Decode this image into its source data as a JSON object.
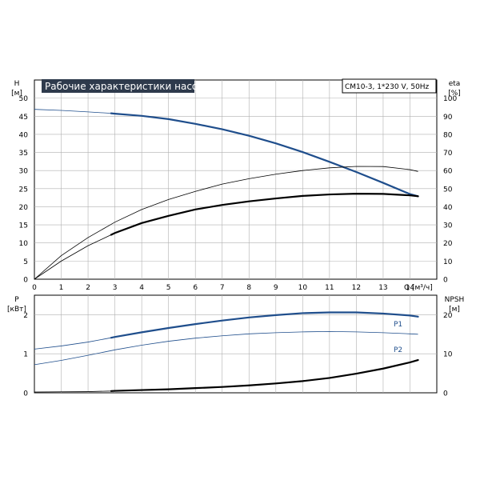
{
  "colors": {
    "blue": "#1f4e8c",
    "black": "#000000",
    "grid": "#b0b0b0",
    "title_bg": "#2e3a4c"
  },
  "chart_data": [
    {
      "id": "head",
      "type": "line",
      "title": "Рабочие характеристики насоса",
      "info": "CM10-3, 1*230 V, 50Hz",
      "xlabel": "Q [м³/ч]",
      "ylabel_left": [
        "H",
        "[м]"
      ],
      "ylabel_right": [
        "eta",
        "[%]"
      ],
      "xlim": [
        0,
        15
      ],
      "ylim": [
        0,
        55
      ],
      "y2lim": [
        0,
        110
      ],
      "x_ticks": [
        "0",
        "1",
        "2",
        "3",
        "4",
        "5",
        "6",
        "7",
        "8",
        "9",
        "10",
        "11",
        "12",
        "13",
        "14"
      ],
      "y_ticks": [
        "0",
        "5",
        "10",
        "15",
        "20",
        "25",
        "30",
        "35",
        "40",
        "45",
        "50"
      ],
      "y2_ticks": [
        "0",
        "10",
        "20",
        "30",
        "40",
        "50",
        "60",
        "70",
        "80",
        "90",
        "100"
      ],
      "grid": true,
      "series": [
        {
          "role": "H",
          "axis": "left",
          "color": "#1f4e8c",
          "x": [
            0,
            1,
            2,
            2.86,
            3,
            4,
            5,
            6,
            7,
            8,
            9,
            10,
            11,
            12,
            13,
            14,
            14.3
          ],
          "y": [
            46.9,
            46.6,
            46.2,
            45.8,
            45.7,
            45.1,
            44.2,
            42.9,
            41.4,
            39.6,
            37.5,
            35.1,
            32.4,
            29.6,
            26.6,
            23.5,
            22.9
          ],
          "thick_from": 2.86
        },
        {
          "role": "eta",
          "axis": "right",
          "color": "#000000",
          "x": [
            0,
            1,
            2,
            2.86,
            3,
            4,
            5,
            6,
            7,
            8,
            9,
            10,
            11,
            12,
            13,
            14,
            14.3
          ],
          "y": [
            0,
            13,
            23,
            30.3,
            31.5,
            38.5,
            44,
            48.5,
            52.5,
            55.5,
            58,
            60,
            61.5,
            62.3,
            62.2,
            60.5,
            59.5
          ],
          "thick_from": 99
        },
        {
          "role": "eta2",
          "axis": "right",
          "color": "#000000",
          "x": [
            0,
            1,
            2,
            2.86,
            3,
            4,
            5,
            6,
            7,
            8,
            9,
            10,
            11,
            12,
            13,
            14,
            14.3
          ],
          "y": [
            0,
            10,
            18.5,
            24.5,
            25.5,
            31,
            35,
            38.5,
            41,
            43,
            44.6,
            46,
            46.8,
            47.2,
            47.1,
            46.3,
            45.8
          ],
          "thick_from": 2.86
        }
      ]
    },
    {
      "id": "power",
      "type": "line",
      "xlim": [
        0,
        15
      ],
      "ylim": [
        0,
        2.5
      ],
      "y2lim": [
        0,
        25
      ],
      "ylabel_left": [
        "P",
        "[кВт]"
      ],
      "ylabel_right": [
        "NPSH",
        "[м]"
      ],
      "y_ticks": [
        "0",
        "1",
        "2"
      ],
      "y2_ticks": [
        "0",
        "10",
        "20"
      ],
      "grid": true,
      "series": [
        {
          "name": "P1",
          "axis": "left",
          "color": "#1f4e8c",
          "x": [
            0,
            1,
            2,
            2.86,
            3,
            4,
            5,
            6,
            7,
            8,
            9,
            10,
            11,
            12,
            13,
            14,
            14.3
          ],
          "y": [
            1.12,
            1.2,
            1.3,
            1.41,
            1.43,
            1.55,
            1.66,
            1.76,
            1.85,
            1.93,
            1.99,
            2.04,
            2.06,
            2.06,
            2.03,
            1.98,
            1.95
          ],
          "thick_from": 2.86
        },
        {
          "name": "P2",
          "axis": "left",
          "color": "#1f4e8c",
          "x": [
            0,
            1,
            2,
            2.86,
            3,
            4,
            5,
            6,
            7,
            8,
            9,
            10,
            11,
            12,
            13,
            14,
            14.3
          ],
          "y": [
            0.72,
            0.83,
            0.96,
            1.08,
            1.1,
            1.22,
            1.32,
            1.4,
            1.46,
            1.51,
            1.54,
            1.56,
            1.57,
            1.56,
            1.54,
            1.51,
            1.5
          ],
          "thick_from": 99
        },
        {
          "role": "NPSH",
          "axis": "right",
          "color": "#000000",
          "x": [
            0,
            1,
            2,
            2.86,
            3,
            4,
            5,
            6,
            7,
            8,
            9,
            10,
            11,
            12,
            13,
            14,
            14.3
          ],
          "y": [
            0.2,
            0.25,
            0.3,
            0.45,
            0.5,
            0.7,
            0.9,
            1.2,
            1.5,
            1.9,
            2.4,
            3.0,
            3.8,
            4.9,
            6.2,
            7.8,
            8.4
          ],
          "thick_from": 2.86
        }
      ]
    }
  ]
}
